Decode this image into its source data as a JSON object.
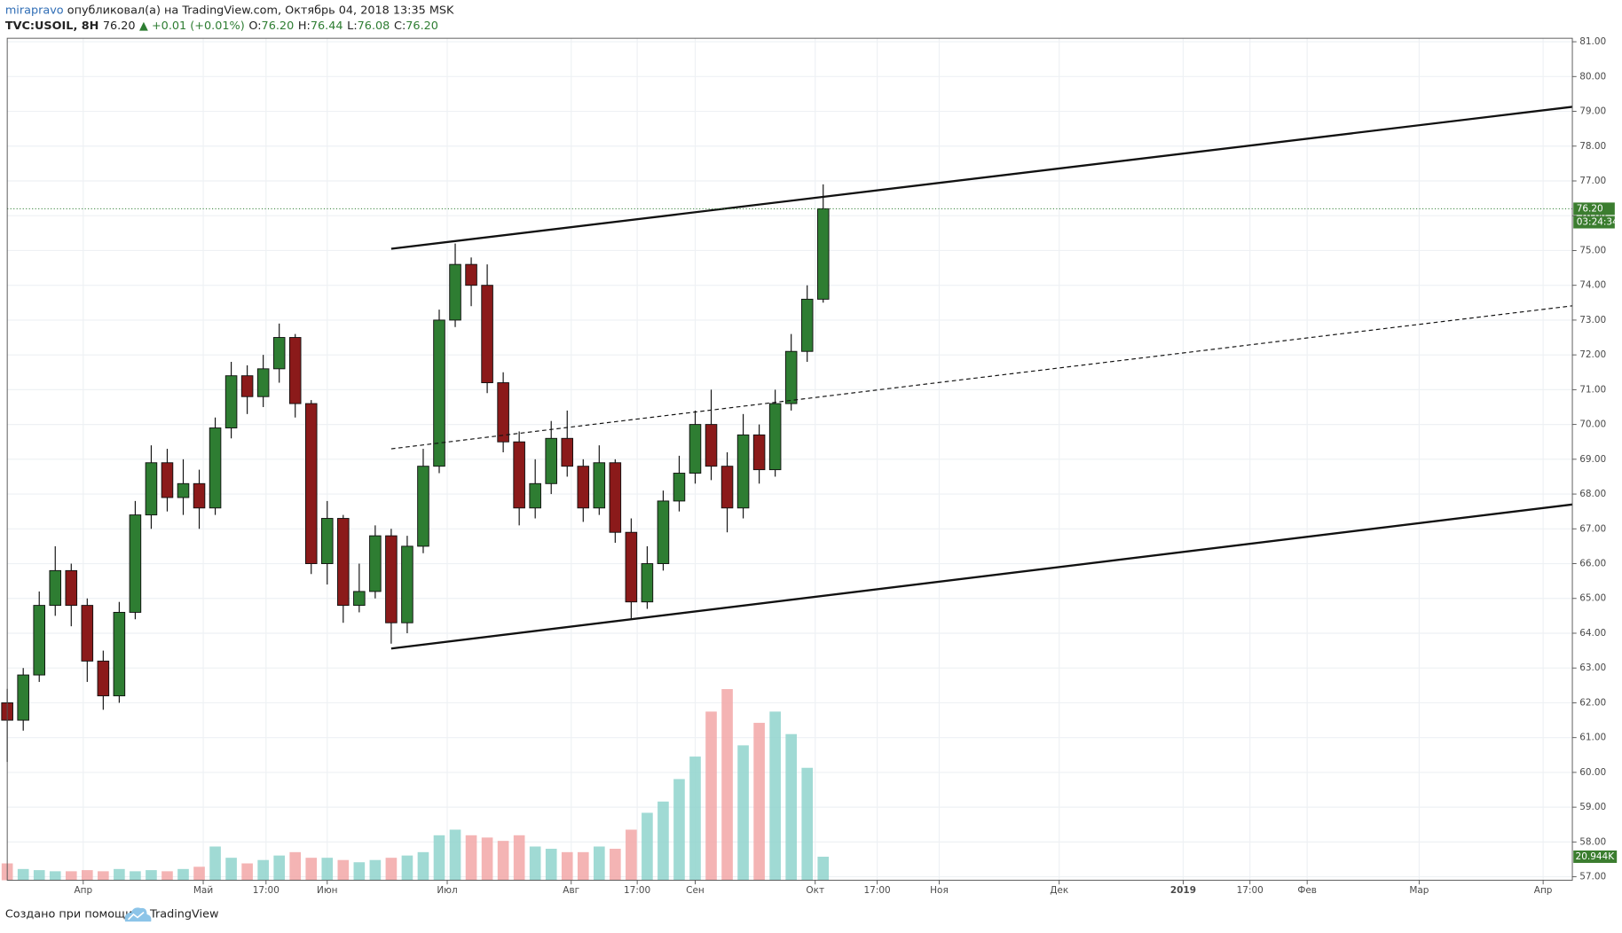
{
  "header": {
    "author": "mirapravo",
    "published": "опубликовал(а) на TradingView.com, Октябрь 04, 2018 13:35 MSK",
    "symbol": "TVC:USOIL, 8H",
    "price": "76.20",
    "change": "▲ +0.01 (+0.01%)",
    "ohlc": [
      {
        "label": "O:",
        "value": "76.20"
      },
      {
        "label": "H:",
        "value": "76.44"
      },
      {
        "label": "L:",
        "value": "76.08"
      },
      {
        "label": "C:",
        "value": "76.20"
      }
    ]
  },
  "footer": {
    "text": "Создано при помощи",
    "brand": "TradingView"
  },
  "chart_data": {
    "type": "candlestick",
    "grid": true,
    "up_color": "#2e7d32",
    "down_color": "#8b1a1a",
    "volume_up_color": "#8fd4cc",
    "volume_down_color": "#f2a7a7",
    "x": [
      0,
      4,
      8,
      12,
      16,
      20,
      24,
      28,
      32,
      36,
      40,
      44,
      48,
      52,
      56,
      60,
      64,
      68,
      72,
      76,
      80,
      84,
      88,
      92,
      96,
      100,
      104,
      108,
      112,
      116,
      120,
      124,
      128,
      132,
      136,
      140,
      144,
      148,
      152,
      156,
      160,
      164,
      168,
      172,
      176,
      180,
      184,
      188,
      192,
      196,
      200,
      204
    ],
    "open": [
      62.0,
      61.5,
      62.8,
      64.8,
      65.8,
      64.8,
      63.2,
      62.2,
      64.6,
      67.4,
      68.9,
      67.9,
      68.3,
      67.6,
      69.9,
      71.4,
      70.8,
      71.6,
      72.5,
      70.6,
      66.0,
      67.3,
      64.8,
      65.2,
      66.8,
      64.3,
      66.5,
      68.8,
      73.0,
      74.6,
      74.0,
      71.2,
      69.5,
      67.6,
      68.3,
      69.6,
      68.8,
      67.6,
      68.9,
      66.9,
      64.9,
      66.0,
      67.8,
      68.6,
      70.0,
      68.8,
      67.6,
      69.7,
      68.7,
      70.6,
      72.1,
      73.6
    ],
    "high": [
      62.4,
      63.0,
      65.2,
      66.5,
      66.0,
      65.0,
      63.5,
      64.9,
      67.8,
      69.4,
      69.3,
      69.0,
      68.7,
      70.2,
      71.8,
      71.7,
      72.0,
      72.9,
      72.6,
      70.7,
      67.8,
      67.4,
      66.0,
      67.1,
      67.0,
      66.8,
      69.3,
      73.3,
      75.2,
      74.8,
      74.6,
      71.5,
      69.8,
      69.0,
      70.1,
      70.4,
      69.0,
      69.4,
      69.0,
      67.3,
      66.5,
      68.1,
      69.1,
      70.4,
      71.0,
      69.2,
      70.3,
      70.0,
      71.0,
      72.6,
      74.0,
      76.9
    ],
    "low": [
      60.3,
      61.2,
      62.6,
      64.5,
      64.2,
      62.6,
      61.8,
      62.0,
      64.4,
      67.0,
      67.5,
      67.4,
      67.0,
      67.4,
      69.6,
      70.3,
      70.5,
      71.2,
      70.2,
      65.7,
      65.4,
      64.3,
      64.6,
      65.0,
      63.7,
      64.0,
      66.3,
      68.6,
      72.8,
      73.4,
      70.9,
      69.2,
      67.1,
      67.3,
      68.0,
      68.5,
      67.2,
      67.4,
      66.6,
      64.4,
      64.7,
      65.8,
      67.5,
      68.3,
      68.4,
      66.9,
      67.3,
      68.3,
      68.5,
      70.4,
      71.8,
      73.5
    ],
    "close": [
      61.5,
      62.8,
      64.8,
      65.8,
      64.8,
      63.2,
      62.2,
      64.6,
      67.4,
      68.9,
      67.9,
      68.3,
      67.6,
      69.9,
      71.4,
      70.8,
      71.6,
      72.5,
      70.6,
      66.0,
      67.3,
      64.8,
      65.2,
      66.8,
      64.3,
      66.5,
      68.8,
      73.0,
      74.6,
      74.0,
      71.2,
      69.5,
      67.6,
      68.3,
      69.6,
      68.8,
      67.6,
      68.9,
      66.9,
      64.9,
      66.0,
      67.8,
      68.6,
      70.0,
      68.8,
      67.6,
      69.7,
      68.7,
      70.6,
      72.1,
      73.6,
      76.2
    ],
    "volume": [
      15,
      10,
      9,
      8,
      8,
      9,
      8,
      10,
      8,
      9,
      8,
      10,
      12,
      30,
      20,
      15,
      18,
      22,
      25,
      20,
      20,
      18,
      16,
      18,
      20,
      22,
      25,
      40,
      45,
      40,
      38,
      35,
      40,
      30,
      28,
      25,
      25,
      30,
      28,
      45,
      60,
      70,
      90,
      110,
      150,
      170,
      120,
      140,
      150,
      130,
      100,
      20.944
    ],
    "volume_lim": [
      0,
      230
    ],
    "volume_last_label": "20.944K",
    "last_price": {
      "value": 76.2,
      "label": "76.20"
    },
    "countdown": "03:24:34",
    "trendlines": [
      {
        "x": [
          96,
          391.3
        ],
        "y": [
          75.05,
          79.13
        ],
        "style": "solid"
      },
      {
        "x": [
          96,
          391.3
        ],
        "y": [
          69.3,
          73.41
        ],
        "style": "dashed"
      },
      {
        "x": [
          96,
          391.3
        ],
        "y": [
          63.56,
          67.7
        ],
        "style": "solid"
      }
    ],
    "xlim": [
      0,
      391.3
    ],
    "xticks": [
      {
        "value": 19,
        "label": "Апр"
      },
      {
        "value": 49,
        "label": "Май"
      },
      {
        "value": 64.7,
        "label": "17:00"
      },
      {
        "value": 80,
        "label": "Июн"
      },
      {
        "value": 110,
        "label": "Июл"
      },
      {
        "value": 141,
        "label": "Авг"
      },
      {
        "value": 157.5,
        "label": "17:00"
      },
      {
        "value": 172,
        "label": "Сен"
      },
      {
        "value": 202,
        "label": "Окт"
      },
      {
        "value": 217.5,
        "label": "17:00"
      },
      {
        "value": 233,
        "label": "Ноя"
      },
      {
        "value": 263,
        "label": "Дек"
      },
      {
        "value": 294,
        "label": "2019"
      },
      {
        "value": 310.7,
        "label": "17:00"
      },
      {
        "value": 325,
        "label": "Фев"
      },
      {
        "value": 353,
        "label": "Мар"
      },
      {
        "value": 384,
        "label": "Апр"
      }
    ],
    "ylim": [
      56.9,
      81.1
    ],
    "yticks": [
      {
        "value": 81,
        "label": "81.00"
      },
      {
        "value": 80,
        "label": "80.00"
      },
      {
        "value": 79,
        "label": "79.00"
      },
      {
        "value": 78,
        "label": "78.00"
      },
      {
        "value": 77,
        "label": "77.00"
      },
      {
        "value": 76,
        "label": "76.00"
      },
      {
        "value": 75,
        "label": "75.00"
      },
      {
        "value": 74,
        "label": "74.00"
      },
      {
        "value": 73,
        "label": "73.00"
      },
      {
        "value": 72,
        "label": "72.00"
      },
      {
        "value": 71,
        "label": "71.00"
      },
      {
        "value": 70,
        "label": "70.00"
      },
      {
        "value": 69,
        "label": "69.00"
      },
      {
        "value": 68,
        "label": "68.00"
      },
      {
        "value": 67,
        "label": "67.00"
      },
      {
        "value": 66,
        "label": "66.00"
      },
      {
        "value": 65,
        "label": "65.00"
      },
      {
        "value": 64,
        "label": "64.00"
      },
      {
        "value": 63,
        "label": "63.00"
      },
      {
        "value": 62,
        "label": "62.00"
      },
      {
        "value": 61,
        "label": "61.00"
      },
      {
        "value": 60,
        "label": "60.00"
      },
      {
        "value": 59,
        "label": "59.00"
      },
      {
        "value": 58,
        "label": "58.00"
      },
      {
        "value": 57,
        "label": "57.00"
      }
    ]
  }
}
